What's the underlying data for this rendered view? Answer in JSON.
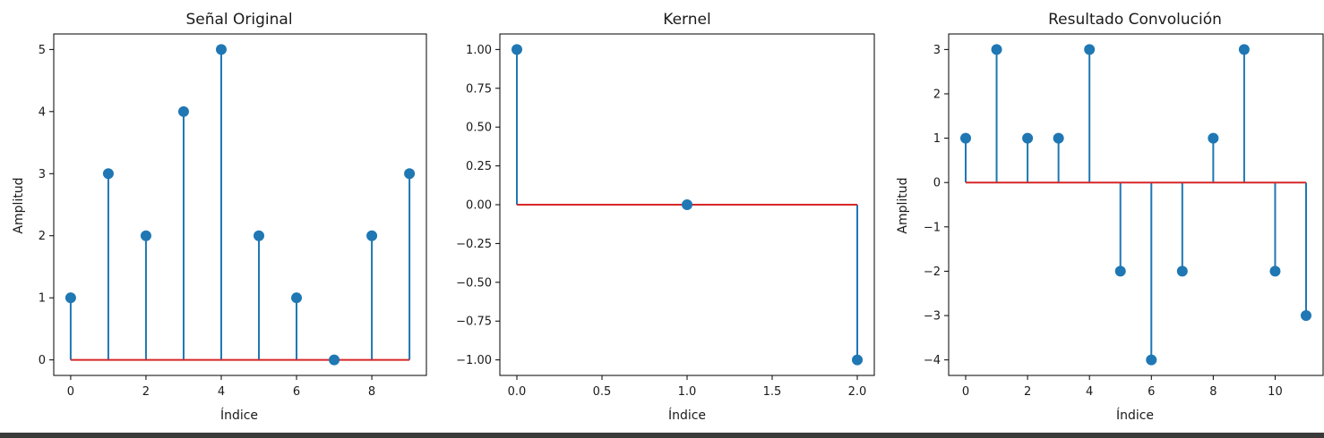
{
  "chart_data": [
    {
      "type": "stem",
      "title": "Señal Original",
      "xlabel": "Índice",
      "ylabel": "Amplitud",
      "x": [
        0,
        1,
        2,
        3,
        4,
        5,
        6,
        7,
        8,
        9
      ],
      "y": [
        1,
        3,
        2,
        4,
        5,
        2,
        1,
        0,
        2,
        3
      ],
      "xlim": [
        -0.45,
        9.45
      ],
      "ylim": [
        -0.25,
        5.25
      ],
      "xticks": [
        0,
        2,
        4,
        6,
        8
      ],
      "xtick_labels": [
        "0",
        "2",
        "4",
        "6",
        "8"
      ],
      "yticks": [
        0,
        1,
        2,
        3,
        4,
        5
      ],
      "ytick_labels": [
        "0",
        "1",
        "2",
        "3",
        "4",
        "5"
      ],
      "grid": false,
      "colors": {
        "stem": "#1f77b4",
        "baseline": "#d62728"
      }
    },
    {
      "type": "stem",
      "title": "Kernel",
      "xlabel": "Índice",
      "ylabel": "",
      "x": [
        0,
        1,
        2
      ],
      "y": [
        1,
        0,
        -1
      ],
      "xlim": [
        -0.1,
        2.1
      ],
      "ylim": [
        -1.1,
        1.1
      ],
      "xticks": [
        0,
        0.5,
        1,
        1.5,
        2
      ],
      "xtick_labels": [
        "0.0",
        "0.5",
        "1.0",
        "1.5",
        "2.0"
      ],
      "yticks": [
        1,
        0.75,
        0.5,
        0.25,
        0,
        -0.25,
        -0.5,
        -0.75,
        -1
      ],
      "ytick_labels": [
        "1.00",
        "0.75",
        "0.50",
        "0.25",
        "0.00",
        "−0.25",
        "−0.50",
        "−0.75",
        "−1.00"
      ],
      "grid": false,
      "colors": {
        "stem": "#1f77b4",
        "baseline": "#d62728"
      }
    },
    {
      "type": "stem",
      "title": "Resultado Convolución",
      "xlabel": "Índice",
      "ylabel": "Amplitud",
      "x": [
        0,
        1,
        2,
        3,
        4,
        5,
        6,
        7,
        8,
        9,
        10,
        11
      ],
      "y": [
        1,
        3,
        1,
        1,
        3,
        -2,
        -4,
        -2,
        1,
        3,
        -2,
        -3
      ],
      "xlim": [
        -0.55,
        11.55
      ],
      "ylim": [
        -4.35,
        3.35
      ],
      "xticks": [
        0,
        2,
        4,
        6,
        8,
        10
      ],
      "xtick_labels": [
        "0",
        "2",
        "4",
        "6",
        "8",
        "10"
      ],
      "yticks": [
        3,
        2,
        1,
        0,
        -1,
        -2,
        -3,
        -4
      ],
      "ytick_labels": [
        "3",
        "2",
        "1",
        "0",
        "−1",
        "−2",
        "−3",
        "−4"
      ],
      "grid": false,
      "colors": {
        "stem": "#1f77b4",
        "baseline": "#d62728"
      }
    }
  ]
}
